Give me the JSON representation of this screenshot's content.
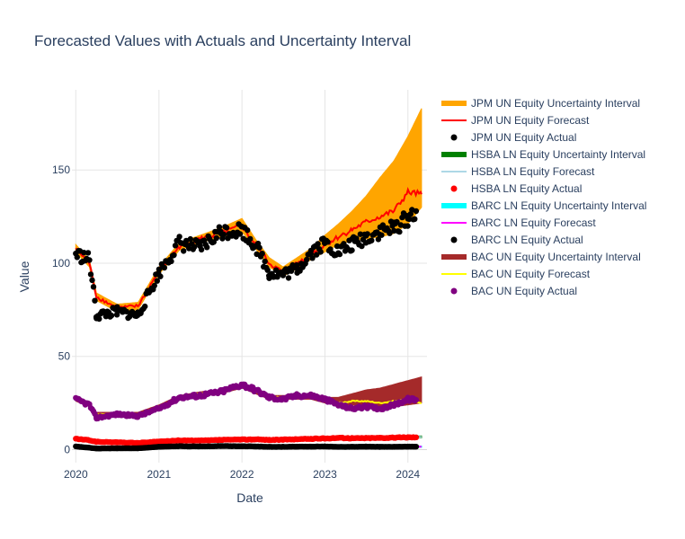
{
  "chart_data": {
    "type": "line",
    "title": "Forecasted Values with Actuals and Uncertainty Interval",
    "xlabel": "Date",
    "ylabel": "Value",
    "xlim": [
      "2019-12-15",
      "2024-03-25"
    ],
    "ylim": [
      -7,
      193
    ],
    "x_ticks": [
      "2020",
      "2021",
      "2022",
      "2023",
      "2024"
    ],
    "x_tick_dates": [
      "2020-01-01",
      "2021-01-01",
      "2022-01-01",
      "2023-01-01",
      "2024-01-01"
    ],
    "y_ticks": [
      0,
      50,
      100,
      150
    ],
    "grid": true,
    "legend_position": "right",
    "dates": [
      "2020-01-01",
      "2020-03-01",
      "2020-04-01",
      "2020-07-01",
      "2020-10-01",
      "2021-01-01",
      "2021-04-01",
      "2021-07-01",
      "2021-10-01",
      "2022-01-01",
      "2022-03-01",
      "2022-05-01",
      "2022-07-01",
      "2022-09-01",
      "2022-11-01",
      "2023-01-01",
      "2023-03-01",
      "2023-05-01",
      "2023-07-01",
      "2023-09-01",
      "2023-11-01",
      "2024-01-01",
      "2024-03-01"
    ],
    "series": [
      {
        "name": "JPM UN Equity Uncertainty Interval",
        "kind": "band",
        "color": "#FFA500",
        "lower": [
          106,
          98,
          80,
          74,
          75,
          94,
          107,
          111,
          114,
          117,
          108,
          98,
          93,
          97,
          102,
          106,
          110,
          112,
          113,
          114,
          116,
          121,
          130
        ],
        "upper": [
          110,
          102,
          84,
          78,
          79,
          98,
          111,
          115,
          119,
          124,
          113,
          103,
          98,
          103,
          108,
          115,
          121,
          128,
          136,
          146,
          155,
          168,
          183
        ]
      },
      {
        "name": "JPM UN Equity Forecast",
        "kind": "line",
        "color": "#FF0000",
        "values": [
          108,
          100,
          82,
          76,
          77,
          96,
          109,
          113,
          116,
          120,
          110,
          100,
          95,
          100,
          105,
          110,
          114,
          118,
          122,
          125,
          128,
          138,
          137
        ]
      },
      {
        "name": "JPM UN Equity Actual",
        "kind": "markers",
        "color": "#000000",
        "values": [
          105,
          102,
          72,
          74,
          72,
          95,
          111,
          108,
          117,
          118,
          110,
          95,
          94,
          97,
          106,
          111,
          106,
          110,
          114,
          117,
          119,
          124,
          136
        ]
      },
      {
        "name": "HSBA LN Equity Uncertainty Interval",
        "kind": "band",
        "color": "#008000",
        "lower": [
          5.4,
          4.9,
          4.1,
          3.7,
          3.5,
          4.1,
          4.5,
          4.6,
          4.8,
          5.0,
          5.2,
          5.1,
          5.1,
          5.2,
          5.3,
          5.6,
          5.8,
          5.9,
          6.0,
          6.0,
          6.1,
          6.2,
          6.3
        ],
        "upper": [
          6.0,
          5.5,
          4.7,
          4.3,
          4.1,
          4.7,
          5.1,
          5.2,
          5.4,
          5.6,
          5.8,
          5.7,
          5.7,
          5.8,
          5.9,
          6.2,
          6.4,
          6.6,
          6.7,
          6.8,
          6.9,
          7.1,
          7.3
        ]
      },
      {
        "name": "HSBA LN Equity Forecast",
        "kind": "line",
        "color": "#ADD8E6",
        "values": [
          5.7,
          5.2,
          4.4,
          4.0,
          3.8,
          4.4,
          4.8,
          4.9,
          5.1,
          5.3,
          5.5,
          5.4,
          5.4,
          5.5,
          5.6,
          5.9,
          6.1,
          6.2,
          6.3,
          6.4,
          6.5,
          6.6,
          6.7
        ]
      },
      {
        "name": "HSBA LN Equity Actual",
        "kind": "markers",
        "color": "#FF0000",
        "values": [
          5.8,
          5.0,
          4.2,
          3.9,
          3.6,
          4.3,
          4.9,
          4.8,
          5.2,
          5.4,
          5.5,
          5.2,
          5.3,
          5.6,
          5.8,
          6.0,
          6.3,
          6.1,
          6.2,
          6.3,
          6.4,
          6.6,
          6.6
        ]
      },
      {
        "name": "BARC LN Equity Uncertainty Interval",
        "kind": "band",
        "color": "#00FFFF",
        "lower": [
          1.6,
          1.2,
          0.8,
          0.8,
          0.8,
          1.3,
          1.6,
          1.7,
          1.7,
          1.6,
          1.5,
          1.4,
          1.4,
          1.4,
          1.4,
          1.5,
          1.5,
          1.4,
          1.4,
          1.3,
          1.3,
          1.3,
          1.2
        ],
        "upper": [
          1.9,
          1.5,
          1.1,
          1.1,
          1.1,
          1.6,
          1.9,
          2.0,
          2.0,
          1.9,
          1.8,
          1.7,
          1.7,
          1.7,
          1.7,
          1.8,
          1.9,
          1.9,
          1.9,
          1.9,
          1.9,
          1.9,
          1.9
        ]
      },
      {
        "name": "BARC LN Equity Forecast",
        "kind": "line",
        "color": "#FF00FF",
        "values": [
          1.8,
          1.35,
          0.95,
          0.95,
          0.95,
          1.45,
          1.75,
          1.85,
          1.85,
          1.75,
          1.65,
          1.55,
          1.55,
          1.55,
          1.55,
          1.65,
          1.7,
          1.65,
          1.65,
          1.6,
          1.6,
          1.6,
          1.55
        ]
      },
      {
        "name": "BARC LN Equity Actual",
        "kind": "markers",
        "color": "#000000",
        "values": [
          1.7,
          1.0,
          0.6,
          0.7,
          0.7,
          1.5,
          1.8,
          1.7,
          1.9,
          1.8,
          1.7,
          1.5,
          1.5,
          1.6,
          1.6,
          1.7,
          1.5,
          1.5,
          1.6,
          1.5,
          1.5,
          1.6,
          1.6
        ]
      },
      {
        "name": "BAC UN Equity Uncertainty Interval",
        "kind": "band",
        "color": "#A52A2A",
        "lower": [
          26,
          23,
          18,
          18,
          18,
          22,
          27,
          29,
          30,
          33,
          30,
          27,
          27,
          27,
          27,
          25,
          24,
          24,
          23,
          22,
          23,
          24,
          25
        ],
        "upper": [
          28,
          25,
          20,
          20,
          20,
          24,
          29,
          31,
          32,
          35,
          32,
          29,
          29,
          29,
          29,
          28,
          28,
          30,
          32,
          33,
          35,
          37,
          39
        ]
      },
      {
        "name": "BAC UN Equity Forecast",
        "kind": "line",
        "color": "#FFFF00",
        "values": [
          27,
          24,
          19,
          19,
          19,
          23,
          28,
          30,
          31,
          34,
          31,
          28,
          28,
          28,
          28,
          26,
          25,
          26,
          26,
          25,
          26,
          27,
          25
        ]
      },
      {
        "name": "BAC UN Equity Actual",
        "kind": "markers",
        "color": "#800080",
        "values": [
          27,
          24,
          17,
          19,
          18,
          22,
          28,
          29,
          31,
          35,
          32,
          28,
          27,
          29,
          29,
          27,
          24,
          22,
          23,
          22,
          24,
          27,
          26
        ]
      }
    ]
  }
}
